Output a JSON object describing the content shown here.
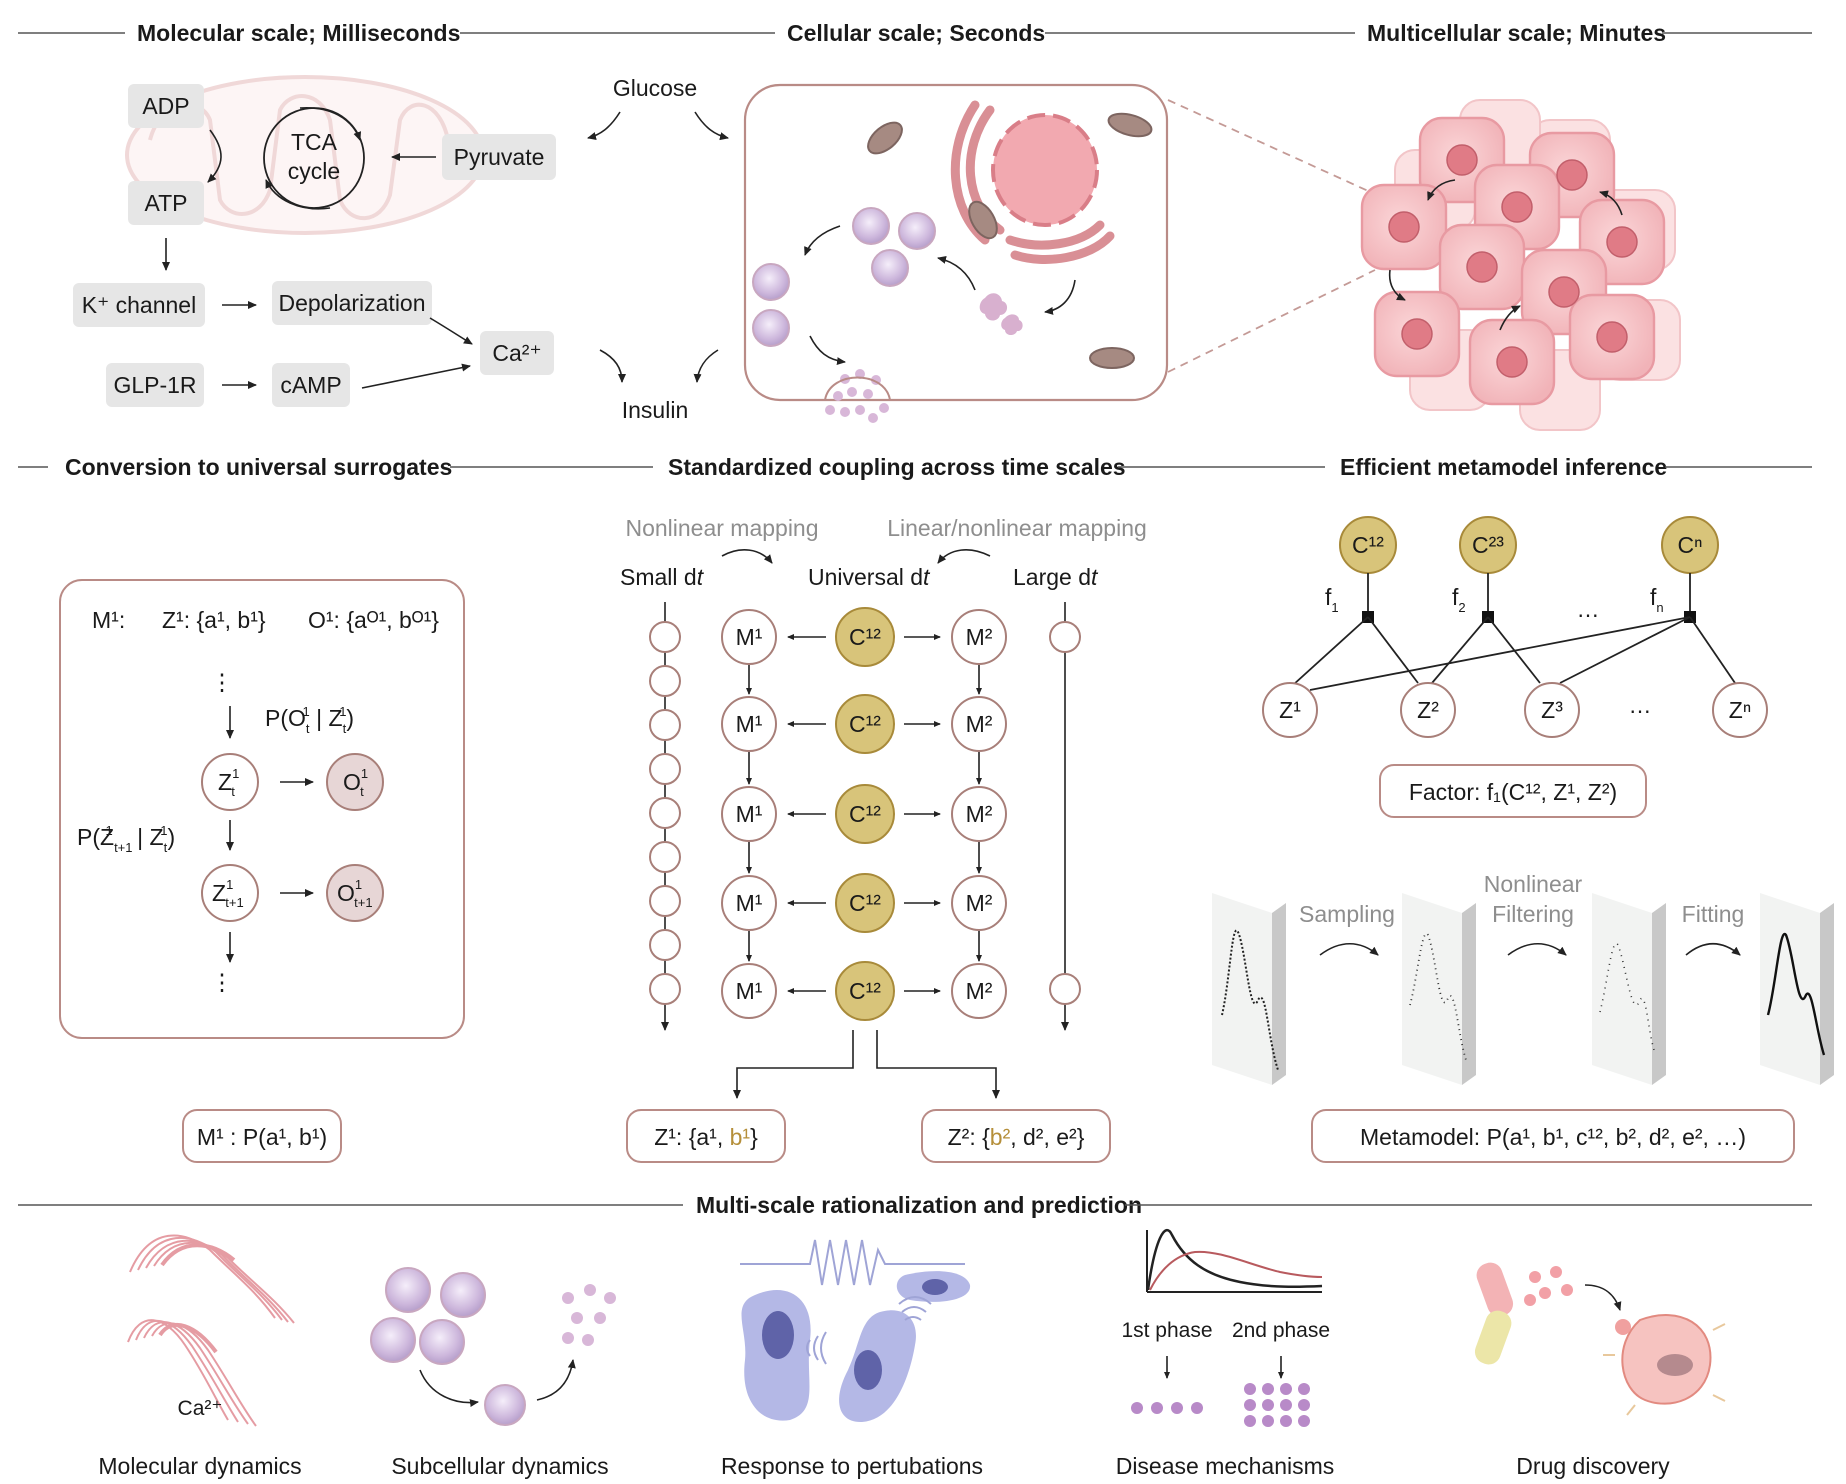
{
  "headers": {
    "molecular": "Molecular scale; Milliseconds",
    "cellular": "Cellular scale; Seconds",
    "multicellular": "Multicellular scale; Minutes",
    "conversion": "Conversion to universal surrogates",
    "coupling": "Standardized coupling across time scales",
    "inference": "Efficient metamodel inference",
    "multiscale": "Multi-scale rationalization and prediction"
  },
  "molecular": {
    "adp": "ADP",
    "atp": "ATP",
    "tca_line1": "TCA",
    "tca_line2": "cycle",
    "pyruvate": "Pyruvate",
    "glucose": "Glucose",
    "insulin": "Insulin",
    "k_channel": "K⁺ channel",
    "depolarization": "Depolarization",
    "glp1r": "GLP-1R",
    "camp": "cAMP",
    "ca": "Ca²⁺"
  },
  "conversion": {
    "m1": "M¹:",
    "z1_set": "Z¹: {a¹, b¹}",
    "o1_set": "O¹: {aᴼ¹, bᴼ¹}",
    "p_obs": "P(O",
    "p_obs_sub": "t",
    "p_obs_sup": "1",
    "p_obs_mid": " | Z",
    "p_obs_end": ")",
    "p_trans": "P(Z",
    "p_trans_sub": "t+1",
    "p_trans_mid": " | Z",
    "p_trans_sub2": "t",
    "z": "Z",
    "o": "O",
    "sup1": "1",
    "sub_t": "t",
    "sub_t1": "t+1",
    "dots": "⋮",
    "bottom": "M¹ : P(a¹, b¹)"
  },
  "coupling": {
    "nonlinear": "Nonlinear mapping",
    "linear_nonlinear": "Linear/nonlinear mapping",
    "small_dt": "Small d",
    "universal_dt": "Universal d",
    "large_dt": "Large d",
    "t_italic": "t",
    "m1": "M¹",
    "m2": "M²",
    "c12": "C¹²",
    "z1_a": "Z¹: {a¹, ",
    "z1_b": "b¹",
    "z1_c": "}",
    "z2_a": "Z²: {",
    "z2_b": "b²",
    "z2_c": ", d², e²}"
  },
  "inference": {
    "c12": "C¹²",
    "c23": "C²³",
    "cn": "Cⁿ",
    "f1": "f",
    "f2": "f",
    "fn": "f",
    "f1_sub": "1",
    "f2_sub": "2",
    "fn_sub": "n",
    "dots": "…",
    "z1": "Z¹",
    "z2": "Z²",
    "z3": "Z³",
    "zn": "Zⁿ",
    "factor": "Factor: f₁(C¹², Z¹, Z²)",
    "sampling": "Sampling",
    "nonlinear_1": "Nonlinear",
    "nonlinear_2": "Filtering",
    "fitting": "Fitting",
    "metamodel": "Metamodel: P(a¹, b¹, c¹², b², d², e²,  …)"
  },
  "bottom_panels": {
    "ca": "Ca²⁺",
    "phase1": "1st phase",
    "phase2": "2nd phase",
    "molecular": "Molecular dynamics",
    "subcellular": "Subcellular dynamics",
    "response": "Response to pertubations",
    "disease": "Disease mechanisms",
    "drug": "Drug discovery"
  },
  "colors": {
    "accent_gold": "#d8c47a",
    "accent_pink": "#e8a0a6",
    "accent_purple": "#c9b7dc",
    "accent_blue": "#9fa4d6"
  }
}
